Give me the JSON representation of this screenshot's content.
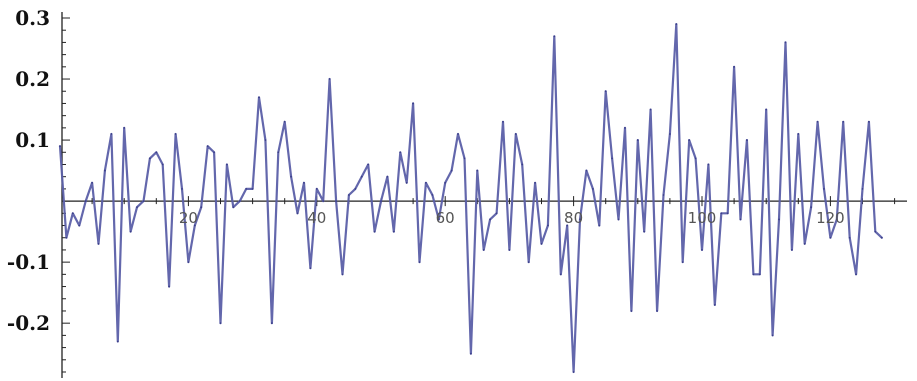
{
  "chart_data": {
    "type": "line",
    "title": "",
    "xlabel": "",
    "ylabel": "",
    "xlim": [
      0,
      132
    ],
    "ylim": [
      -0.28,
      0.3
    ],
    "grid": false,
    "series_color": "#5b5fa8",
    "x_tick_labels": [
      "20",
      "40",
      "60",
      "80",
      "100",
      "120"
    ],
    "x_tick_values": [
      20,
      40,
      60,
      80,
      100,
      120
    ],
    "y_tick_labels": [
      "0.3",
      "0.2",
      "0.1",
      "-0.1",
      "-0.2"
    ],
    "y_tick_values": [
      0.3,
      0.2,
      0.1,
      -0.1,
      -0.2
    ],
    "series": [
      {
        "y": [
          0.09,
          -0.06,
          -0.02,
          -0.04,
          0.0,
          0.03,
          -0.07,
          0.05,
          0.11,
          -0.23,
          0.12,
          -0.05,
          -0.01,
          0.0,
          0.07,
          0.08,
          0.06,
          -0.14,
          0.11,
          0.02,
          -0.1,
          -0.04,
          -0.01,
          0.09,
          0.08,
          -0.2,
          0.06,
          -0.01,
          0.0,
          0.02,
          0.02,
          0.17,
          0.1,
          -0.2,
          0.08,
          0.13,
          0.04,
          -0.02,
          0.03,
          -0.11,
          0.02,
          0.0,
          0.2,
          0.0,
          -0.12,
          0.01,
          0.02,
          0.04,
          0.06,
          -0.05,
          0.0,
          0.04,
          -0.05,
          0.08,
          0.03,
          0.16,
          -0.1,
          0.03,
          0.01,
          -0.03,
          0.03,
          0.05,
          0.11,
          0.07,
          -0.25,
          0.05,
          -0.08,
          -0.03,
          -0.02,
          0.13,
          -0.08,
          0.11,
          0.06,
          -0.1,
          0.03,
          -0.07,
          -0.04,
          0.27,
          -0.12,
          -0.04,
          -0.28,
          -0.03,
          0.05,
          0.02,
          -0.04,
          0.18,
          0.07,
          -0.03,
          0.12,
          -0.18,
          0.1,
          -0.05,
          0.15,
          -0.18,
          0.01,
          0.11,
          0.29,
          -0.1,
          0.1,
          0.07,
          -0.08,
          0.06,
          -0.17,
          -0.02,
          -0.02,
          0.22,
          -0.03,
          0.1,
          -0.12,
          -0.12,
          0.15,
          -0.22,
          -0.03,
          0.26,
          -0.08,
          0.11,
          -0.07,
          -0.01,
          0.13,
          0.02,
          -0.06,
          -0.03,
          0.13,
          -0.06,
          -0.12,
          0.02,
          0.13,
          -0.05,
          -0.06
        ]
      }
    ]
  }
}
